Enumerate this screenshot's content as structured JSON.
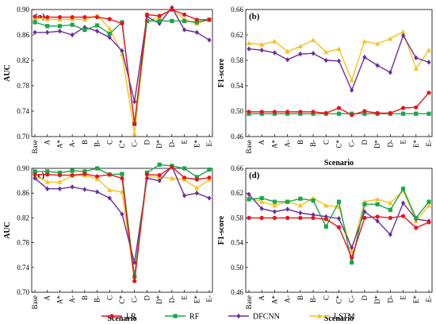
{
  "colors": {
    "LR": "#e8141b",
    "RF": "#1aa64a",
    "DFCNN": "#6a2f9c",
    "LSTM": "#f5c21b"
  },
  "legend": [
    "LR",
    "RF",
    "DFCNN",
    "LSTM"
  ],
  "chart_data": [
    {
      "panel": "(a)",
      "type": "line",
      "ylabel": "AUC",
      "xlabel": "",
      "ylim": [
        0.7,
        0.9
      ],
      "yticks": [
        "0.70",
        "0.74",
        "0.78",
        "0.82",
        "0.86",
        "0.90"
      ],
      "categories": [
        "Base",
        "A",
        "A*",
        "A-",
        "B",
        "B-",
        "C",
        "C*",
        "C-"
      ],
      "series": [
        {
          "name": "LR",
          "values": [
            0.889,
            0.888,
            0.888,
            0.888,
            0.888,
            0.888,
            0.885,
            0.878,
            0.72
          ]
        },
        {
          "name": "RF",
          "values": [
            0.88,
            0.874,
            0.874,
            0.876,
            0.868,
            0.875,
            0.862,
            0.88,
            0.72
          ]
        },
        {
          "name": "DFCNN",
          "values": [
            0.864,
            0.864,
            0.866,
            0.86,
            0.872,
            0.866,
            0.856,
            0.835,
            0.755
          ]
        },
        {
          "name": "LSTM",
          "values": [
            0.886,
            0.885,
            0.884,
            0.885,
            0.884,
            0.891,
            0.87,
            0.83,
            0.705
          ]
        }
      ]
    },
    {
      "panel": "(a)-right",
      "type": "line",
      "ylim": [
        0.7,
        0.9
      ],
      "categories": [
        "D",
        "D*",
        "D-",
        "E",
        "E*",
        "E-"
      ],
      "series": [
        {
          "name": "LR",
          "values": [
            0.892,
            0.89,
            0.9,
            0.892,
            0.884,
            0.884
          ]
        },
        {
          "name": "RF",
          "values": [
            0.882,
            0.882,
            0.882,
            0.882,
            0.88,
            0.884
          ]
        },
        {
          "name": "DFCNN",
          "values": [
            0.889,
            0.878,
            0.903,
            0.868,
            0.864,
            0.852
          ]
        },
        {
          "name": "LSTM",
          "values": [
            0.882,
            0.888,
            0.9,
            0.884,
            0.878,
            0.884
          ]
        }
      ]
    },
    {
      "panel": "(b)",
      "type": "line",
      "ylabel": "F1-score",
      "xlabel": "Scenario",
      "ylim": [
        0.46,
        0.66
      ],
      "yticks": [
        "0.46",
        "0.50",
        "0.54",
        "0.58",
        "0.62",
        "0.66"
      ],
      "categories": [
        "Base",
        "A",
        "A*",
        "A-",
        "B",
        "B-",
        "C",
        "C*",
        "C-",
        "D",
        "D*",
        "D-",
        "E",
        "E*",
        "E-"
      ],
      "series": [
        {
          "name": "LR",
          "values": [
            0.499,
            0.499,
            0.499,
            0.499,
            0.499,
            0.499,
            0.497,
            0.505,
            0.494,
            0.5,
            0.497,
            0.497,
            0.505,
            0.506,
            0.529
          ]
        },
        {
          "name": "RF",
          "values": [
            0.496,
            0.496,
            0.496,
            0.496,
            0.496,
            0.496,
            0.496,
            0.496,
            0.496,
            0.496,
            0.496,
            0.496,
            0.496,
            0.496,
            0.496
          ]
        },
        {
          "name": "DFCNN",
          "values": [
            0.598,
            0.596,
            0.592,
            0.581,
            0.59,
            0.591,
            0.58,
            0.579,
            0.533,
            0.585,
            0.572,
            0.561,
            0.619,
            0.584,
            0.577
          ]
        },
        {
          "name": "LSTM",
          "values": [
            0.607,
            0.605,
            0.61,
            0.594,
            0.602,
            0.612,
            0.593,
            0.598,
            0.549,
            0.61,
            0.606,
            0.614,
            0.625,
            0.567,
            0.596
          ]
        }
      ]
    },
    {
      "panel": "(c)",
      "type": "line",
      "ylabel": "AUC",
      "xlabel": "Scenario",
      "ylim": [
        0.7,
        0.9
      ],
      "yticks": [
        "0.70",
        "0.74",
        "0.78",
        "0.82",
        "0.86",
        "0.90"
      ],
      "categories": [
        "Base",
        "A",
        "A*",
        "A-",
        "B",
        "B-",
        "C",
        "C*",
        "C-",
        "D",
        "D*",
        "D-",
        "E",
        "E*",
        "E-"
      ],
      "series": [
        {
          "name": "LR",
          "values": [
            0.89,
            0.89,
            0.889,
            0.889,
            0.891,
            0.887,
            0.89,
            0.884,
            0.718,
            0.89,
            0.889,
            0.902,
            0.885,
            0.882,
            0.885
          ]
        },
        {
          "name": "RF",
          "values": [
            0.895,
            0.895,
            0.893,
            0.896,
            0.895,
            0.9,
            0.89,
            0.891,
            0.725,
            0.893,
            0.906,
            0.904,
            0.9,
            0.886,
            0.898
          ]
        },
        {
          "name": "DFCNN",
          "values": [
            0.884,
            0.867,
            0.867,
            0.87,
            0.866,
            0.862,
            0.852,
            0.826,
            0.748,
            0.884,
            0.88,
            0.903,
            0.856,
            0.86,
            0.852
          ]
        },
        {
          "name": "LSTM",
          "values": [
            0.888,
            0.878,
            0.878,
            0.888,
            0.889,
            0.883,
            0.865,
            0.862,
            0.72,
            0.886,
            0.886,
            0.884,
            0.882,
            0.868,
            0.882
          ]
        }
      ]
    },
    {
      "panel": "(d)",
      "type": "line",
      "ylabel": "F1-score",
      "xlabel": "Scenario",
      "ylim": [
        0.46,
        0.66
      ],
      "yticks": [
        "0.46",
        "0.50",
        "0.54",
        "0.58",
        "0.62",
        "0.66"
      ],
      "categories": [
        "Base",
        "A",
        "A*",
        "A-",
        "B",
        "B-",
        "C",
        "C*",
        "C-",
        "D",
        "D*",
        "D-",
        "E",
        "E*",
        "E-"
      ],
      "series": [
        {
          "name": "LR",
          "values": [
            0.58,
            0.58,
            0.58,
            0.58,
            0.58,
            0.58,
            0.578,
            0.565,
            0.516,
            0.58,
            0.582,
            0.58,
            0.583,
            0.564,
            0.573
          ]
        },
        {
          "name": "RF",
          "values": [
            0.61,
            0.612,
            0.606,
            0.606,
            0.611,
            0.608,
            0.566,
            0.606,
            0.508,
            0.602,
            0.602,
            0.593,
            0.627,
            0.58,
            0.606
          ]
        },
        {
          "name": "DFCNN",
          "values": [
            0.618,
            0.595,
            0.59,
            0.594,
            0.588,
            0.585,
            0.582,
            0.579,
            0.532,
            0.59,
            0.575,
            0.553,
            0.604,
            0.578,
            0.575
          ]
        },
        {
          "name": "LSTM",
          "values": [
            0.612,
            0.606,
            0.6,
            0.606,
            0.6,
            0.612,
            0.6,
            0.598,
            0.527,
            0.606,
            0.61,
            0.604,
            0.624,
            0.575,
            0.6
          ]
        }
      ]
    }
  ]
}
